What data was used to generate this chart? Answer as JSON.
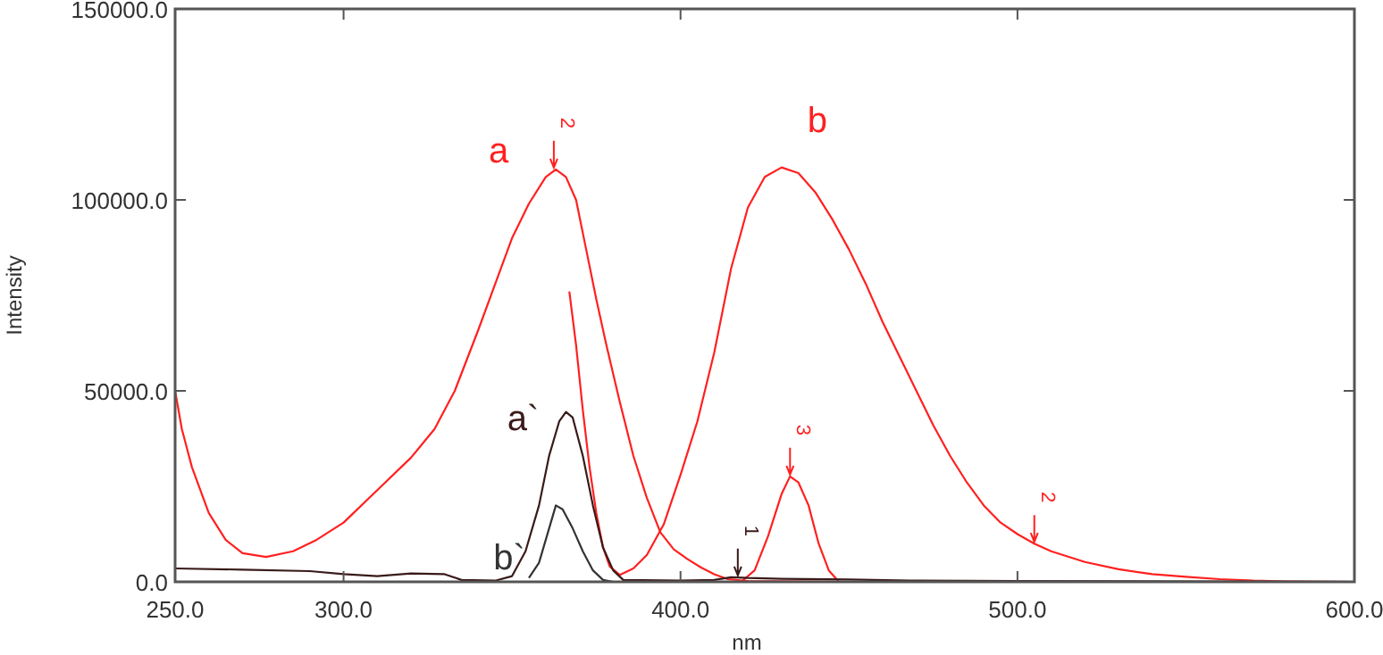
{
  "chart_data": {
    "type": "line",
    "xlabel": "nm",
    "ylabel": "Intensity",
    "xlim": [
      250,
      600
    ],
    "xticks": [
      {
        "value": 250,
        "label": "250.0"
      },
      {
        "value": 300,
        "label": "300.0"
      },
      {
        "value": 400,
        "label": "400.0"
      },
      {
        "value": 500,
        "label": "500.0"
      },
      {
        "value": 600,
        "label": "600.0"
      }
    ],
    "ylim": [
      0,
      150000
    ],
    "yticks": [
      {
        "value": 0,
        "label": "0.0"
      },
      {
        "value": 50000,
        "label": "50000.0"
      },
      {
        "value": 100000,
        "label": "100000.0"
      },
      {
        "value": 150000,
        "label": "150000.0"
      }
    ],
    "grid": false,
    "line_style": "solid",
    "series": [
      {
        "name": "a",
        "color": "#ff2020",
        "x": [
          250,
          252,
          255,
          260,
          265,
          270,
          277,
          285,
          292,
          300,
          310,
          320,
          327,
          333,
          340,
          345,
          350,
          355,
          360,
          363,
          366,
          369,
          372,
          375,
          378,
          382,
          386,
          390,
          394,
          398,
          402,
          406,
          410,
          414,
          420,
          450,
          600
        ],
        "values": [
          50000,
          40000,
          30000,
          18000,
          11000,
          7500,
          6500,
          8000,
          11000,
          15500,
          24000,
          32500,
          40000,
          50000,
          66000,
          78000,
          90000,
          99000,
          106000,
          108000,
          106000,
          100000,
          87000,
          74000,
          62000,
          47000,
          33000,
          22000,
          13000,
          8500,
          6000,
          3800,
          2000,
          700,
          200,
          0,
          0
        ]
      },
      {
        "name": "b",
        "color": "#ff2020",
        "x": [
          367,
          369,
          371,
          373,
          375,
          377,
          379,
          382,
          386,
          390,
          395,
          400,
          405,
          410,
          415,
          420,
          425,
          430,
          435,
          440,
          445,
          450,
          455,
          460,
          465,
          470,
          475,
          480,
          485,
          490,
          495,
          500,
          505,
          510,
          520,
          530,
          540,
          550,
          560,
          570,
          580,
          600
        ],
        "values": [
          76000,
          62000,
          45000,
          30000,
          18000,
          9000,
          4000,
          1800,
          3500,
          7000,
          15000,
          28000,
          42000,
          60000,
          82000,
          98000,
          106000,
          108500,
          107000,
          102000,
          95000,
          87000,
          78000,
          68000,
          59000,
          50000,
          41000,
          33000,
          26000,
          20000,
          15500,
          12500,
          10000,
          8000,
          5200,
          3300,
          2000,
          1300,
          700,
          300,
          100,
          0
        ]
      },
      {
        "color": "#ff2020",
        "x": [
          418,
          422,
          426,
          430,
          432.5,
          435,
          438,
          441,
          444,
          447
        ],
        "values": [
          0,
          3000,
          12000,
          23000,
          27600,
          26000,
          20000,
          10000,
          3000,
          0
        ]
      },
      {
        "name": "a`",
        "color": "#3a1a1a",
        "x": [
          250,
          270,
          290,
          300,
          310,
          320,
          330,
          335,
          345,
          350,
          354,
          358,
          361,
          364,
          366,
          368,
          371,
          374,
          377,
          380,
          383,
          400,
          410,
          415,
          420,
          430,
          450,
          470,
          500,
          600
        ],
        "values": [
          3500,
          3200,
          2800,
          2000,
          1500,
          2200,
          2000,
          500,
          300,
          1500,
          8000,
          20000,
          33000,
          42000,
          44500,
          43000,
          33000,
          20000,
          9000,
          3000,
          500,
          300,
          500,
          1200,
          1000,
          800,
          600,
          300,
          200,
          0
        ]
      },
      {
        "name": "b`",
        "color": "#333333",
        "x": [
          355,
          358,
          361,
          363,
          365,
          368,
          371,
          374,
          377,
          380
        ],
        "values": [
          1000,
          5000,
          14000,
          20000,
          19000,
          14000,
          8000,
          3000,
          500,
          0
        ]
      }
    ],
    "annotations": [
      {
        "text": "2",
        "x": 362.4,
        "y": 108000
      },
      {
        "text": "3",
        "x": 432.5,
        "y": 27600
      },
      {
        "text": "1",
        "x": 417,
        "y": 1200
      },
      {
        "text": "2",
        "x": 505,
        "y": 10000
      }
    ]
  }
}
